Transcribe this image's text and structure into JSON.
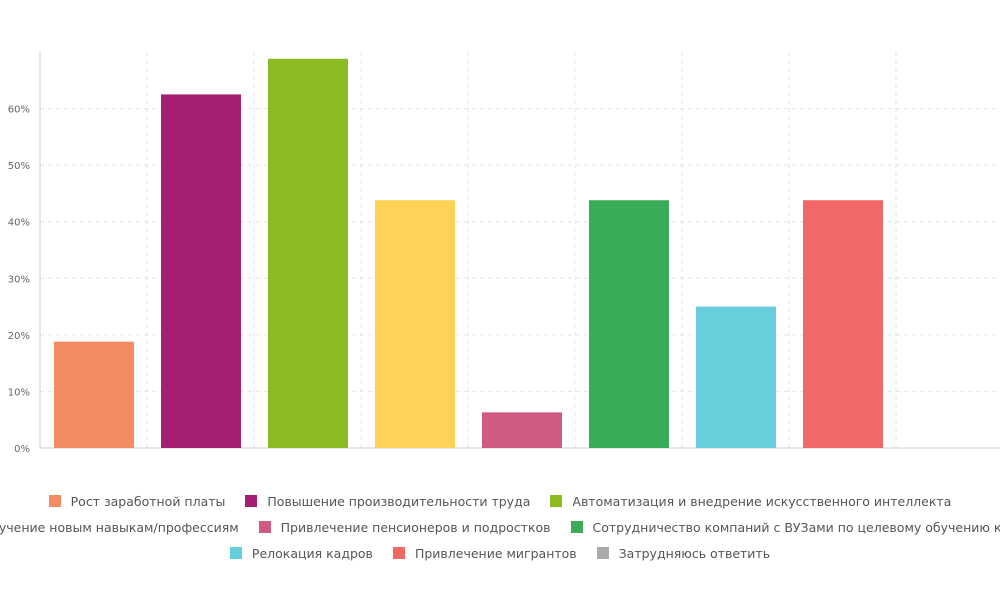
{
  "chart_data": {
    "type": "bar",
    "categories": [
      "Рост заработной платы",
      "Повышение производительности труда",
      "Автоматизация и внедрение искусственного интеллекта",
      "Обучение новым навыкам/профессиям",
      "Привлечение пенсионеров и подростков",
      "Сотрудничество компаний с ВУЗами по целевому обучению кадров",
      "Релокация кадров",
      "Привлечение мигрантов",
      "Затрудняюсь ответить"
    ],
    "values": [
      18.8,
      62.5,
      68.8,
      43.8,
      6.3,
      43.8,
      25.0,
      43.8,
      0
    ],
    "colors": [
      "#f58b63",
      "#a41e72",
      "#8cba22",
      "#fdd257",
      "#d05a80",
      "#3aab57",
      "#66cfdb",
      "#f26868",
      "#aaaaaa"
    ],
    "ylim": [
      0,
      70
    ],
    "yticks": [
      0,
      10,
      20,
      30,
      40,
      50,
      60
    ],
    "ytick_labels": [
      "0%",
      "10%",
      "20%",
      "30%",
      "40%",
      "50%",
      "60%"
    ],
    "grid": true,
    "legend_position": "bottom",
    "legend_rows": [
      [
        0,
        1,
        2
      ],
      [
        3,
        4,
        5
      ],
      [
        6,
        7,
        8
      ]
    ]
  }
}
